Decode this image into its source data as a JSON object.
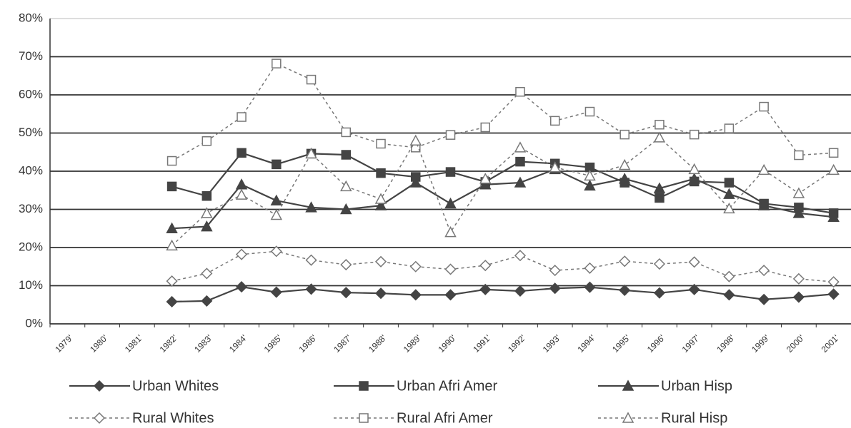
{
  "chart_data": {
    "type": "line",
    "categories": [
      "1979'",
      "1980'",
      "1981'",
      "1982'",
      "1983'",
      "1984'",
      "1985'",
      "1986'",
      "1987'",
      "1988'",
      "1989'",
      "1990'",
      "1991'",
      "1992'",
      "1993'",
      "1994'",
      "1995'",
      "1996'",
      "1997'",
      "1998'",
      "1999'",
      "2000'",
      "2001'"
    ],
    "ylim": [
      0,
      80
    ],
    "yticks": [
      {
        "value": 0,
        "label": "0%"
      },
      {
        "value": 10,
        "label": "10%"
      },
      {
        "value": 20,
        "label": "20%"
      },
      {
        "value": 30,
        "label": "30%"
      },
      {
        "value": 40,
        "label": "40%"
      },
      {
        "value": 50,
        "label": "50%"
      },
      {
        "value": 60,
        "label": "60%"
      },
      {
        "value": 70,
        "label": "70%"
      },
      {
        "value": 80,
        "label": "80%"
      }
    ],
    "grid": true,
    "legend": "bottom",
    "series": [
      {
        "name": "Urban Whites",
        "color": "#444444",
        "marker": "diamond",
        "filled": true,
        "dashed": false,
        "values": [
          null,
          null,
          null,
          5.8,
          6,
          9.7,
          8.3,
          9.1,
          8.2,
          8,
          7.6,
          7.6,
          9,
          8.6,
          9.3,
          9.6,
          8.8,
          8.1,
          9,
          7.6,
          6.4,
          7,
          7.8
        ]
      },
      {
        "name": "Urban Afri Amer",
        "color": "#444444",
        "marker": "square",
        "filled": true,
        "dashed": false,
        "values": [
          null,
          null,
          null,
          36,
          33.5,
          44.8,
          41.8,
          44.6,
          44.3,
          39.5,
          38.5,
          39.8,
          37.2,
          42.5,
          42,
          41,
          37,
          33,
          37.3,
          37,
          31.5,
          30.5,
          29
        ]
      },
      {
        "name": "Urban Hisp",
        "color": "#444444",
        "marker": "triangle",
        "filled": true,
        "dashed": false,
        "values": [
          null,
          null,
          null,
          25,
          25.5,
          36.5,
          32.3,
          30.5,
          30,
          31,
          37,
          31.5,
          36.5,
          37,
          40.5,
          36.2,
          38,
          35.5,
          38,
          34,
          31,
          29,
          28
        ]
      },
      {
        "name": "Rural Whites",
        "color": "#777777",
        "marker": "diamond",
        "filled": false,
        "dashed": true,
        "values": [
          null,
          null,
          null,
          11.2,
          13.2,
          18.2,
          19,
          16.7,
          15.5,
          16.3,
          15,
          14.3,
          15.3,
          17.9,
          14,
          14.6,
          16.4,
          15.7,
          16.2,
          12.4,
          14,
          11.8,
          11
        ]
      },
      {
        "name": "Rural Afri Amer",
        "color": "#777777",
        "marker": "square",
        "filled": false,
        "dashed": true,
        "values": [
          null,
          null,
          null,
          42.7,
          47.9,
          54.2,
          68.2,
          64,
          50.2,
          47.2,
          46.2,
          49.5,
          51.5,
          60.8,
          53.2,
          55.6,
          49.6,
          52.2,
          49.6,
          51.2,
          56.9,
          44.2,
          44.8
        ]
      },
      {
        "name": "Rural Hisp",
        "color": "#777777",
        "marker": "triangle",
        "filled": false,
        "dashed": true,
        "values": [
          null,
          null,
          null,
          20.5,
          29,
          33.8,
          28.5,
          44.6,
          36,
          32.7,
          48,
          24,
          38,
          46.2,
          41,
          38.8,
          41.6,
          48.8,
          40.5,
          30.2,
          40.3,
          34.2,
          40.3
        ]
      }
    ]
  }
}
